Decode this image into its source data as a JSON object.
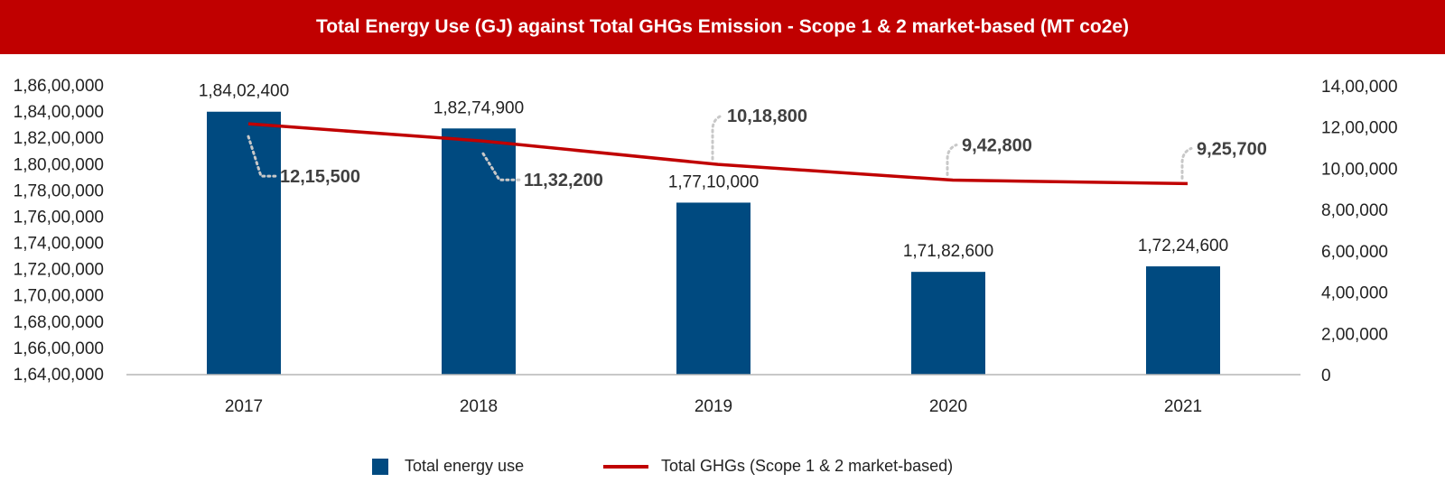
{
  "chart_data": {
    "type": "bar+line",
    "title": "Total Energy Use  (GJ) against Total GHGs Emission - Scope 1 & 2 market-based (MT co2e)",
    "categories": [
      "2017",
      "2018",
      "2019",
      "2020",
      "2021"
    ],
    "series": [
      {
        "name": "Total energy use",
        "type": "bar",
        "axis": "left",
        "values": [
          18402400,
          18274900,
          17710000,
          17182600,
          17224600
        ],
        "labels": [
          "1,84,02,400",
          "1,82,74,900",
          "1,77,10,000",
          "1,71,82,600",
          "1,72,24,600"
        ]
      },
      {
        "name": "Total GHGs (Scope 1 & 2 market-based)",
        "type": "line",
        "axis": "right",
        "values": [
          1215500,
          1132200,
          1018800,
          942800,
          925700
        ],
        "labels": [
          "12,15,500",
          "11,32,200",
          "10,18,800",
          "9,42,800",
          "9,25,700"
        ]
      }
    ],
    "y_left": {
      "ylim": [
        16400000,
        18600000
      ],
      "ticks": [
        16400000,
        16600000,
        16800000,
        17000000,
        17200000,
        17400000,
        17600000,
        17800000,
        18000000,
        18200000,
        18400000,
        18600000
      ],
      "tick_labels": [
        "1,64,00,000",
        "1,66,00,000",
        "1,68,00,000",
        "1,70,00,000",
        "1,72,00,000",
        "1,74,00,000",
        "1,76,00,000",
        "1,78,00,000",
        "1,80,00,000",
        "1,82,00,000",
        "1,84,00,000",
        "1,86,00,000"
      ]
    },
    "y_right": {
      "ylim": [
        0,
        1400000
      ],
      "ticks": [
        0,
        200000,
        400000,
        600000,
        800000,
        1000000,
        1200000,
        1400000
      ],
      "tick_labels": [
        "0",
        "2,00,000",
        "4,00,000",
        "6,00,000",
        "8,00,000",
        "10,00,000",
        "12,00,000",
        "14,00,000"
      ]
    },
    "grid": false,
    "legend_position": "bottom",
    "colors": {
      "bar": "#004a80",
      "line": "#c00000",
      "leader": "#c8c8c8",
      "title_bg": "#c00000"
    }
  }
}
